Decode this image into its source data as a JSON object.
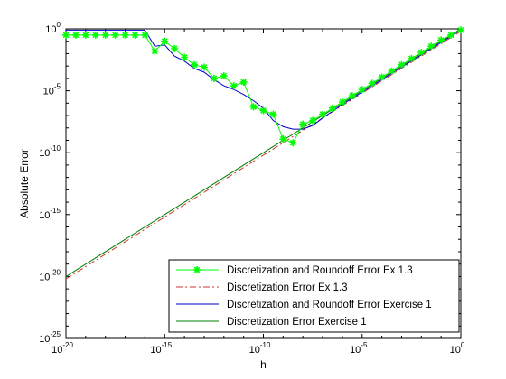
{
  "chart_data": {
    "type": "line",
    "title": "",
    "xlabel": "h",
    "ylabel": "Absolute Error",
    "x_scale": "log",
    "y_scale": "log",
    "xlim_exponent": [
      -20,
      0
    ],
    "ylim_exponent": [
      -25,
      0
    ],
    "x_ticks": [
      {
        "base": "10",
        "exp": "-20"
      },
      {
        "base": "10",
        "exp": "-15"
      },
      {
        "base": "10",
        "exp": "-10"
      },
      {
        "base": "10",
        "exp": "-5"
      },
      {
        "base": "10",
        "exp": "0"
      }
    ],
    "y_ticks": [
      {
        "base": "10",
        "exp": "0"
      },
      {
        "base": "10",
        "exp": "-5"
      },
      {
        "base": "10",
        "exp": "-10"
      },
      {
        "base": "10",
        "exp": "-15"
      },
      {
        "base": "10",
        "exp": "-20"
      },
      {
        "base": "10",
        "exp": "-25"
      }
    ],
    "grid": false,
    "legend_position": "bottom-right",
    "series": [
      {
        "name": "Discretization and Roundoff Error Ex 1.3",
        "color": "#00ff00",
        "style": "solid",
        "marker": "asterisk",
        "x_log10": [
          -20,
          -19.5,
          -19,
          -18.5,
          -18,
          -17.5,
          -17,
          -16.5,
          -16,
          -15.5,
          -15,
          -14.5,
          -14,
          -13.5,
          -13,
          -12.5,
          -12,
          -11.5,
          -11,
          -10.5,
          -10,
          -9.5,
          -9,
          -8.5,
          -8,
          -7.5,
          -7,
          -6.5,
          -6,
          -5.5,
          -5,
          -4.5,
          -4,
          -3.5,
          -3,
          -2.5,
          -2,
          -1.5,
          -1,
          -0.5,
          0
        ],
        "y_log10": [
          -0.5,
          -0.5,
          -0.5,
          -0.5,
          -0.5,
          -0.5,
          -0.5,
          -0.5,
          -0.5,
          -1.8,
          -1.0,
          -1.6,
          -2.3,
          -2.9,
          -3.1,
          -4.0,
          -3.8,
          -4.6,
          -4.3,
          -6.3,
          -6.6,
          -6.9,
          -8.9,
          -9.2,
          -7.7,
          -7.4,
          -6.9,
          -6.4,
          -5.9,
          -5.4,
          -4.9,
          -4.4,
          -3.9,
          -3.4,
          -2.9,
          -2.4,
          -1.9,
          -1.4,
          -0.9,
          -0.5,
          -0.1
        ]
      },
      {
        "name": "Discretization Error Ex 1.3",
        "color": "#cc3333",
        "style": "dashdot",
        "marker": "none",
        "x_log10": [
          -20,
          0
        ],
        "y_log10": [
          -20.2,
          -0.2
        ]
      },
      {
        "name": "Discretization and Roundoff Error Exercise 1",
        "color": "#0000cc",
        "style": "solid",
        "marker": "none",
        "x_log10": [
          -20,
          -16,
          -15.5,
          -15,
          -14.5,
          -14,
          -13.5,
          -13,
          -12.5,
          -12,
          -11.5,
          -11,
          -10.5,
          -10,
          -9.5,
          -9,
          -8.5,
          -8,
          -7.5,
          -7,
          -6,
          -5,
          -4,
          -3,
          -2,
          -1,
          0
        ],
        "y_log10": [
          -0.1,
          -0.1,
          -1.4,
          -1.3,
          -2.2,
          -2.6,
          -3.2,
          -3.5,
          -4.1,
          -4.6,
          -4.9,
          -5.3,
          -5.8,
          -6.4,
          -7.4,
          -7.9,
          -8.1,
          -8.1,
          -7.8,
          -7.2,
          -6.1,
          -5.1,
          -4.1,
          -3.1,
          -2.1,
          -1.1,
          -0.1
        ]
      },
      {
        "name": "Discretization Error Exercise 1",
        "color": "#008000",
        "style": "solid",
        "marker": "none",
        "x_log10": [
          -20,
          0
        ],
        "y_log10": [
          -20,
          0
        ]
      }
    ]
  }
}
